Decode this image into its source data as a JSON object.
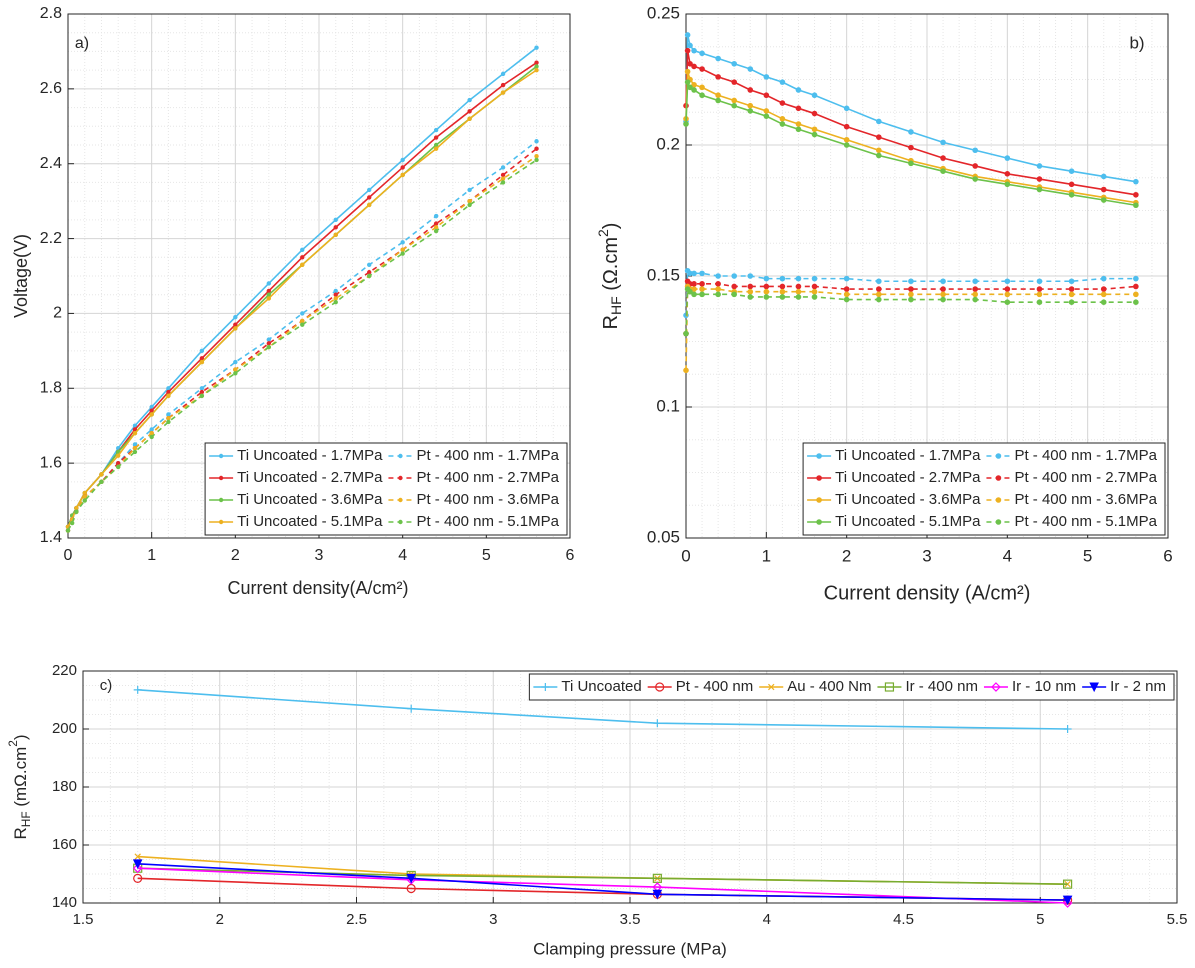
{
  "chart_data": [
    {
      "type": "line",
      "panel_label": "a)",
      "xlabel": "Current density(A/cm²)",
      "ylabel": "Voltage(V)",
      "xlim": [
        0,
        6
      ],
      "xticks": [
        0,
        1,
        2,
        3,
        4,
        5,
        6
      ],
      "ylim": [
        1.4,
        2.8
      ],
      "yticks": [
        1.4,
        1.6,
        1.8,
        2,
        2.2,
        2.4,
        2.6,
        2.8
      ],
      "grid": true,
      "minor_grid": true,
      "legend": {
        "location": "lower right",
        "columns": 2
      },
      "x": [
        0,
        0.05,
        0.1,
        0.2,
        0.4,
        0.6,
        0.8,
        1,
        1.2,
        1.6,
        2,
        2.4,
        2.8,
        3.2,
        3.6,
        4,
        4.4,
        4.8,
        5.2,
        5.6
      ],
      "series": [
        {
          "name": "Ti Uncoated - 1.7MPa",
          "color": "#4DBEEE",
          "linestyle": "solid",
          "marker": ".",
          "values": [
            1.43,
            1.46,
            1.48,
            1.52,
            1.57,
            1.64,
            1.7,
            1.75,
            1.8,
            1.9,
            1.99,
            2.08,
            2.17,
            2.25,
            2.33,
            2.41,
            2.49,
            2.57,
            2.64,
            2.71
          ]
        },
        {
          "name": "Ti Uncoated - 2.7MPa",
          "color": "#E3262A",
          "linestyle": "solid",
          "marker": ".",
          "values": [
            1.43,
            1.46,
            1.48,
            1.52,
            1.57,
            1.63,
            1.69,
            1.74,
            1.79,
            1.88,
            1.97,
            2.06,
            2.15,
            2.23,
            2.31,
            2.39,
            2.47,
            2.54,
            2.61,
            2.67
          ]
        },
        {
          "name": "Ti Uncoated - 3.6MPa",
          "color": "#6CC24A",
          "linestyle": "solid",
          "marker": ".",
          "values": [
            1.43,
            1.46,
            1.48,
            1.52,
            1.57,
            1.63,
            1.68,
            1.73,
            1.78,
            1.87,
            1.96,
            2.05,
            2.13,
            2.21,
            2.29,
            2.37,
            2.45,
            2.52,
            2.59,
            2.66
          ]
        },
        {
          "name": "Ti Uncoated - 5.1MPa",
          "color": "#EDB120",
          "linestyle": "solid",
          "marker": ".",
          "values": [
            1.43,
            1.45,
            1.48,
            1.52,
            1.57,
            1.62,
            1.68,
            1.73,
            1.78,
            1.87,
            1.96,
            2.04,
            2.13,
            2.21,
            2.29,
            2.37,
            2.44,
            2.52,
            2.59,
            2.65
          ]
        },
        {
          "name": "Pt - 400 nm - 1.7MPa",
          "color": "#4DBEEE",
          "linestyle": "dashed",
          "marker": ".",
          "values": [
            1.42,
            1.45,
            1.47,
            1.51,
            1.55,
            1.6,
            1.65,
            1.69,
            1.73,
            1.8,
            1.87,
            1.93,
            2.0,
            2.06,
            2.13,
            2.19,
            2.26,
            2.33,
            2.39,
            2.46
          ]
        },
        {
          "name": "Pt - 400 nm - 2.7MPa",
          "color": "#E3262A",
          "linestyle": "dashed",
          "marker": ".",
          "values": [
            1.42,
            1.45,
            1.47,
            1.51,
            1.55,
            1.6,
            1.64,
            1.68,
            1.72,
            1.79,
            1.85,
            1.92,
            1.98,
            2.05,
            2.11,
            2.17,
            2.24,
            2.3,
            2.37,
            2.44
          ]
        },
        {
          "name": "Pt - 400 nm - 3.6MPa",
          "color": "#EDB120",
          "linestyle": "dashed",
          "marker": ".",
          "values": [
            1.42,
            1.45,
            1.47,
            1.51,
            1.55,
            1.59,
            1.64,
            1.68,
            1.72,
            1.78,
            1.85,
            1.91,
            1.98,
            2.04,
            2.1,
            2.17,
            2.23,
            2.3,
            2.36,
            2.42
          ]
        },
        {
          "name": "Pt - 400 nm - 5.1MPa",
          "color": "#6CC24A",
          "linestyle": "dashed",
          "marker": ".",
          "values": [
            1.42,
            1.44,
            1.47,
            1.5,
            1.55,
            1.59,
            1.63,
            1.67,
            1.71,
            1.78,
            1.84,
            1.91,
            1.97,
            2.03,
            2.1,
            2.16,
            2.22,
            2.29,
            2.35,
            2.41
          ]
        }
      ]
    },
    {
      "type": "line",
      "panel_label": "b)",
      "xlabel": "Current density (A/cm²)",
      "ylabel": [
        "R",
        "HF",
        "  (Ω.cm",
        "2",
        ")"
      ],
      "xlim": [
        0,
        6
      ],
      "xticks": [
        0,
        1,
        2,
        3,
        4,
        5,
        6
      ],
      "ylim": [
        0.05,
        0.25
      ],
      "yticks": [
        0.05,
        0.1,
        0.15,
        0.2,
        0.25
      ],
      "grid": true,
      "minor_grid": true,
      "legend": {
        "location": "lower right",
        "columns": 2
      },
      "x": [
        0,
        0.02,
        0.05,
        0.1,
        0.2,
        0.4,
        0.6,
        0.8,
        1,
        1.2,
        1.4,
        1.6,
        2,
        2.4,
        2.8,
        3.2,
        3.6,
        4,
        4.4,
        4.8,
        5.2,
        5.6
      ],
      "series": [
        {
          "name": "Ti Uncoated - 1.7MPa",
          "color": "#4DBEEE",
          "linestyle": "solid",
          "marker": ".",
          "values": [
            0.209,
            0.242,
            0.238,
            0.236,
            0.235,
            0.233,
            0.231,
            0.229,
            0.226,
            0.224,
            0.221,
            0.219,
            0.214,
            0.209,
            0.205,
            0.201,
            0.198,
            0.195,
            0.192,
            0.19,
            0.188,
            0.186
          ]
        },
        {
          "name": "Ti Uncoated - 2.7MPa",
          "color": "#E3262A",
          "linestyle": "solid",
          "marker": ".",
          "values": [
            0.215,
            0.236,
            0.231,
            0.23,
            0.229,
            0.226,
            0.224,
            0.221,
            0.219,
            0.216,
            0.214,
            0.212,
            0.207,
            0.203,
            0.199,
            0.195,
            0.192,
            0.189,
            0.187,
            0.185,
            0.183,
            0.181
          ]
        },
        {
          "name": "Ti Uncoated - 3.6MPa",
          "color": "#EDB120",
          "linestyle": "solid",
          "marker": ".",
          "values": [
            0.21,
            0.228,
            0.225,
            0.223,
            0.222,
            0.219,
            0.217,
            0.215,
            0.213,
            0.21,
            0.208,
            0.206,
            0.202,
            0.198,
            0.194,
            0.191,
            0.188,
            0.186,
            0.184,
            0.182,
            0.18,
            0.178
          ]
        },
        {
          "name": "Ti Uncoated - 5.1MPa",
          "color": "#6CC24A",
          "linestyle": "solid",
          "marker": ".",
          "values": [
            0.208,
            0.224,
            0.222,
            0.221,
            0.219,
            0.217,
            0.215,
            0.213,
            0.211,
            0.208,
            0.206,
            0.204,
            0.2,
            0.196,
            0.193,
            0.19,
            0.187,
            0.185,
            0.183,
            0.181,
            0.179,
            0.177
          ]
        },
        {
          "name": "Pt - 400 nm - 1.7MPa",
          "color": "#4DBEEE",
          "linestyle": "dashed",
          "marker": ".",
          "values": [
            0.135,
            0.152,
            0.151,
            0.151,
            0.151,
            0.15,
            0.15,
            0.15,
            0.149,
            0.149,
            0.149,
            0.149,
            0.149,
            0.148,
            0.148,
            0.148,
            0.148,
            0.148,
            0.148,
            0.148,
            0.149,
            0.149
          ]
        },
        {
          "name": "Pt - 400 nm - 2.7MPa",
          "color": "#E3262A",
          "linestyle": "dashed",
          "marker": ".",
          "values": [
            0.128,
            0.148,
            0.147,
            0.147,
            0.147,
            0.147,
            0.146,
            0.146,
            0.146,
            0.146,
            0.146,
            0.146,
            0.145,
            0.145,
            0.145,
            0.145,
            0.145,
            0.145,
            0.145,
            0.145,
            0.145,
            0.146
          ]
        },
        {
          "name": "Pt - 400 nm - 3.6MPa",
          "color": "#EDB120",
          "linestyle": "dashed",
          "marker": ".",
          "values": [
            0.114,
            0.146,
            0.145,
            0.145,
            0.145,
            0.145,
            0.144,
            0.144,
            0.144,
            0.144,
            0.144,
            0.144,
            0.143,
            0.143,
            0.143,
            0.143,
            0.143,
            0.143,
            0.143,
            0.143,
            0.143,
            0.143
          ]
        },
        {
          "name": "Pt - 400 nm - 5.1MPa",
          "color": "#6CC24A",
          "linestyle": "dashed",
          "marker": ".",
          "values": [
            0.128,
            0.145,
            0.144,
            0.143,
            0.143,
            0.143,
            0.143,
            0.142,
            0.142,
            0.142,
            0.142,
            0.142,
            0.141,
            0.141,
            0.141,
            0.141,
            0.141,
            0.14,
            0.14,
            0.14,
            0.14,
            0.14
          ]
        }
      ]
    },
    {
      "type": "line",
      "panel_label": "c)",
      "xlabel": "Clamping pressure (MPa)",
      "ylabel": [
        "R",
        "HF",
        " (mΩ.cm",
        "2",
        ")"
      ],
      "xlim": [
        1.5,
        5.5
      ],
      "xticks": [
        1.5,
        2,
        2.5,
        3,
        3.5,
        4,
        4.5,
        5,
        5.5
      ],
      "ylim": [
        140,
        220
      ],
      "yticks": [
        140,
        160,
        180,
        200,
        220
      ],
      "grid": true,
      "minor_grid": true,
      "legend": {
        "location": "upper right",
        "columns": 6
      },
      "x": [
        1.7,
        2.7,
        3.6,
        5.1
      ],
      "series": [
        {
          "name": "Ti Uncoated",
          "color": "#4DBEEE",
          "linestyle": "solid",
          "marker": "+",
          "values": [
            213.5,
            207,
            202,
            200
          ]
        },
        {
          "name": "Pt - 400 nm",
          "color": "#E3262A",
          "linestyle": "solid",
          "marker": "o",
          "values": [
            148.5,
            145,
            143,
            141
          ]
        },
        {
          "name": "Au - 400 Nm",
          "color": "#EDB120",
          "linestyle": "solid",
          "marker": "x",
          "values": [
            156,
            150,
            148.5,
            146.5
          ]
        },
        {
          "name": "Ir - 400 nm",
          "color": "#77AC30",
          "linestyle": "solid",
          "marker": "s",
          "values": [
            152,
            149.5,
            148.5,
            146.5
          ]
        },
        {
          "name": "Ir - 10 nm",
          "color": "#FF00FF",
          "linestyle": "solid",
          "marker": "d",
          "values": [
            152,
            148,
            145.5,
            140
          ]
        },
        {
          "name": "Ir - 2 nm",
          "color": "#0000FF",
          "linestyle": "solid",
          "marker": "v",
          "values": [
            153.5,
            148.5,
            143,
            141
          ]
        }
      ]
    }
  ]
}
